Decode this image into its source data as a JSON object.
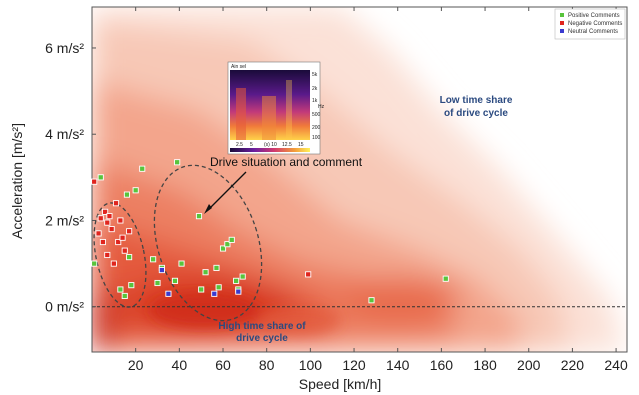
{
  "chart_data": {
    "type": "scatter",
    "title": "",
    "xlabel": "Speed [km/h]",
    "ylabel": "Acceleration [m/s²]",
    "xlim": [
      0,
      245
    ],
    "ylim": [
      -1.05,
      6.95
    ],
    "xticks": [
      20,
      40,
      60,
      80,
      100,
      120,
      140,
      160,
      180,
      200,
      220,
      240
    ],
    "yticks": [
      {
        "value": 0,
        "label": "0 m/s²"
      },
      {
        "value": 2,
        "label": "2 m/s²"
      },
      {
        "value": 4,
        "label": "4 m/s²"
      },
      {
        "value": 6,
        "label": "6 m/s²"
      }
    ],
    "reference_line_y": 0,
    "legend_position": "top-right",
    "series": [
      {
        "name": "Positive Comments",
        "color": "#58c43c",
        "points": [
          {
            "x": 1,
            "y": 1.0
          },
          {
            "x": 4,
            "y": 3.0
          },
          {
            "x": 13,
            "y": 0.4
          },
          {
            "x": 15,
            "y": 0.25
          },
          {
            "x": 16,
            "y": 2.6
          },
          {
            "x": 17,
            "y": 1.15
          },
          {
            "x": 18,
            "y": 0.5
          },
          {
            "x": 20,
            "y": 2.7
          },
          {
            "x": 23,
            "y": 3.2
          },
          {
            "x": 28,
            "y": 1.1
          },
          {
            "x": 30,
            "y": 0.55
          },
          {
            "x": 32,
            "y": 0.9
          },
          {
            "x": 38,
            "y": 0.6
          },
          {
            "x": 39,
            "y": 3.35
          },
          {
            "x": 41,
            "y": 1.0
          },
          {
            "x": 49,
            "y": 2.1
          },
          {
            "x": 50,
            "y": 0.4
          },
          {
            "x": 52,
            "y": 0.8
          },
          {
            "x": 57,
            "y": 0.9
          },
          {
            "x": 58,
            "y": 0.45
          },
          {
            "x": 60,
            "y": 1.35
          },
          {
            "x": 62,
            "y": 1.45
          },
          {
            "x": 64,
            "y": 1.55
          },
          {
            "x": 66,
            "y": 0.6
          },
          {
            "x": 67,
            "y": 0.4
          },
          {
            "x": 69,
            "y": 0.7
          },
          {
            "x": 128,
            "y": 0.15
          },
          {
            "x": 162,
            "y": 0.65
          }
        ]
      },
      {
        "name": "Negative Comments",
        "color": "#e0251e",
        "points": [
          {
            "x": 1,
            "y": 2.9
          },
          {
            "x": 3,
            "y": 1.7
          },
          {
            "x": 4,
            "y": 2.05
          },
          {
            "x": 5,
            "y": 1.5
          },
          {
            "x": 6,
            "y": 2.2
          },
          {
            "x": 7,
            "y": 1.2
          },
          {
            "x": 8,
            "y": 2.1
          },
          {
            "x": 9,
            "y": 1.8
          },
          {
            "x": 10,
            "y": 1.0
          },
          {
            "x": 11,
            "y": 2.4
          },
          {
            "x": 12,
            "y": 1.5
          },
          {
            "x": 13,
            "y": 2.0
          },
          {
            "x": 14,
            "y": 1.6
          },
          {
            "x": 15,
            "y": 1.3
          },
          {
            "x": 17,
            "y": 1.75
          },
          {
            "x": 7,
            "y": 1.95
          },
          {
            "x": 99,
            "y": 0.75
          }
        ]
      },
      {
        "name": "Neutral Comments",
        "color": "#3a3ad0",
        "points": [
          {
            "x": 32,
            "y": 0.85
          },
          {
            "x": 35,
            "y": 0.3
          },
          {
            "x": 56,
            "y": 0.3
          },
          {
            "x": 67,
            "y": 0.35
          }
        ]
      }
    ],
    "annotations": [
      {
        "text": "Low time share",
        "x": 170,
        "y": 4.75
      },
      {
        "text": "of drive cycle",
        "x": 170,
        "y": 4.4
      },
      {
        "text": "High time share of",
        "x": 79,
        "y": -0.47
      },
      {
        "text": "drive cycle",
        "x": 78,
        "y": -0.8
      },
      {
        "text": "Drive situation and comment",
        "x": 109,
        "y": 3.35
      }
    ],
    "inset_spectrogram": {
      "title": "Ain sel",
      "right_ticks": [
        "5k",
        "2k",
        "1k",
        "500",
        "200",
        "100"
      ],
      "unit": "Hz",
      "x_ticks": [
        "2.5",
        "5",
        "(s) 10",
        "12.5",
        "15"
      ]
    }
  }
}
